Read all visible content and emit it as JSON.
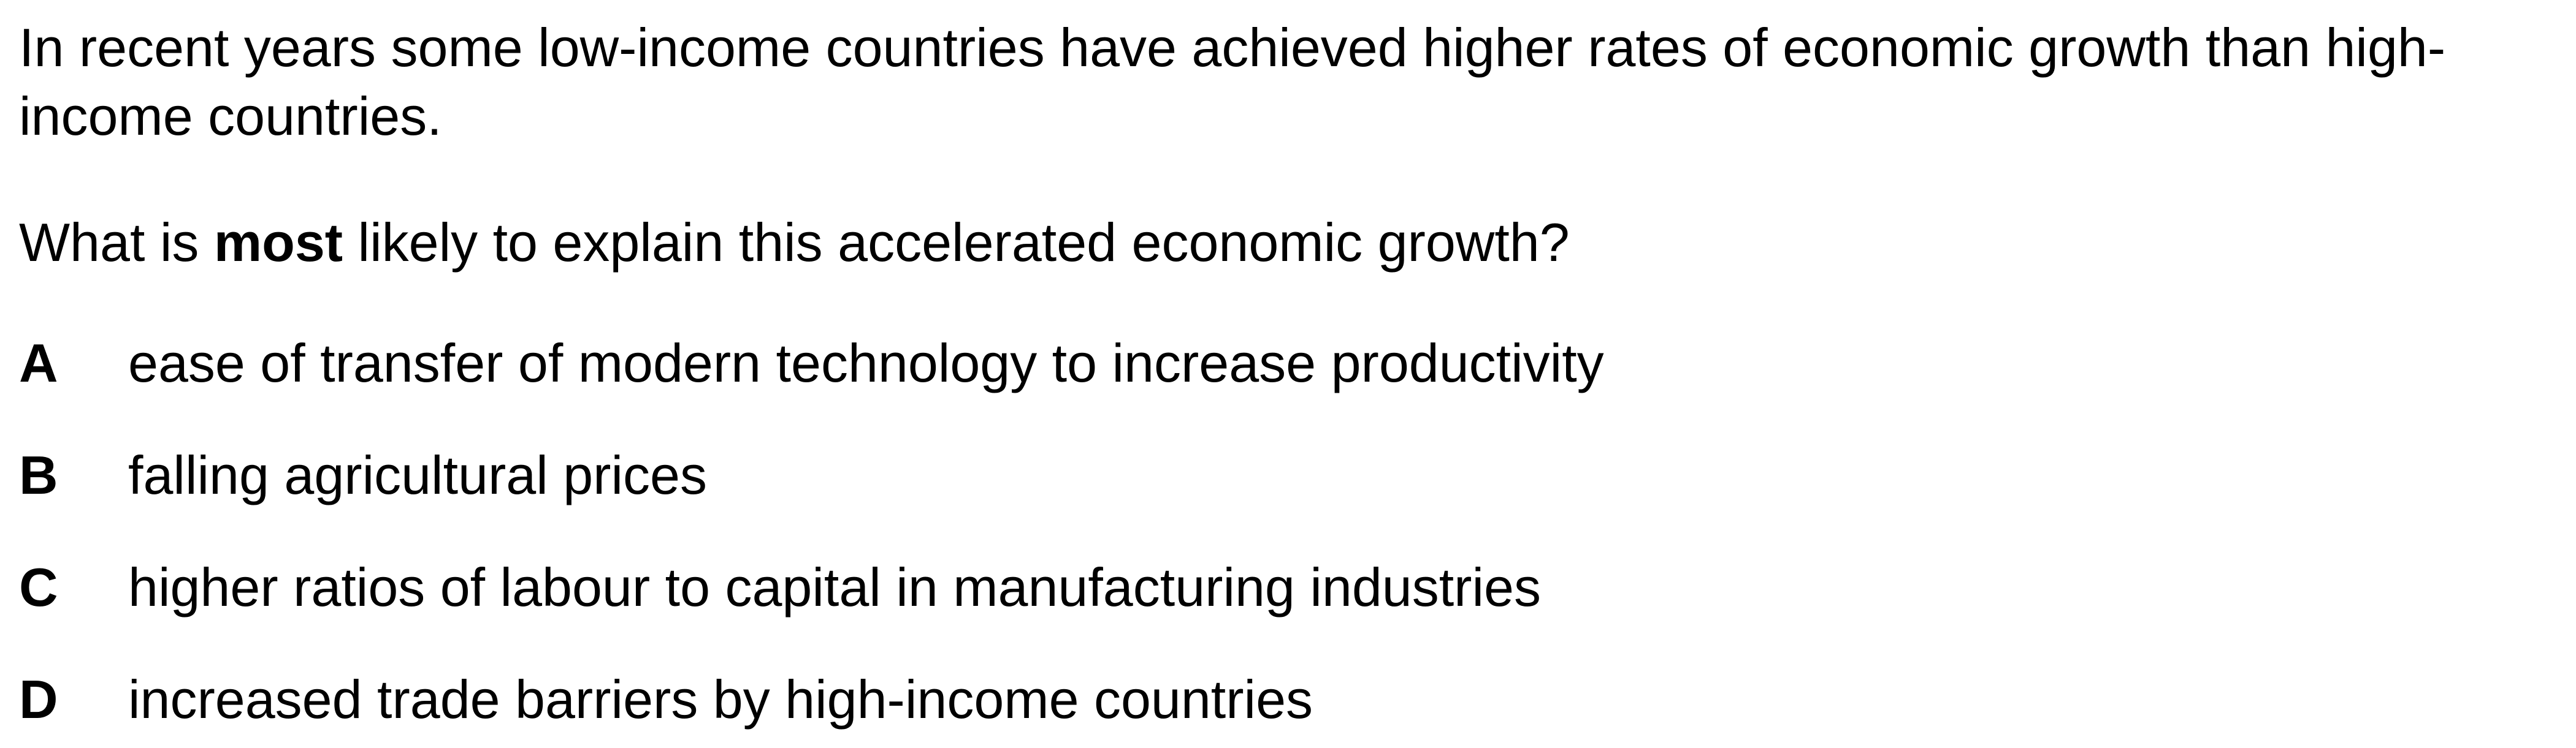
{
  "stem": "In recent years some low-income countries have achieved higher rates of economic growth than high-income countries.",
  "question": {
    "before": "What is ",
    "emphasis": "most",
    "after": " likely to explain this accelerated economic growth?"
  },
  "options": [
    {
      "letter": "A",
      "text": "ease of transfer of modern technology to increase productivity"
    },
    {
      "letter": "B",
      "text": "falling agricultural prices"
    },
    {
      "letter": "C",
      "text": "higher ratios of labour to capital in manufacturing industries"
    },
    {
      "letter": "D",
      "text": "increased trade barriers by high-income countries"
    }
  ]
}
